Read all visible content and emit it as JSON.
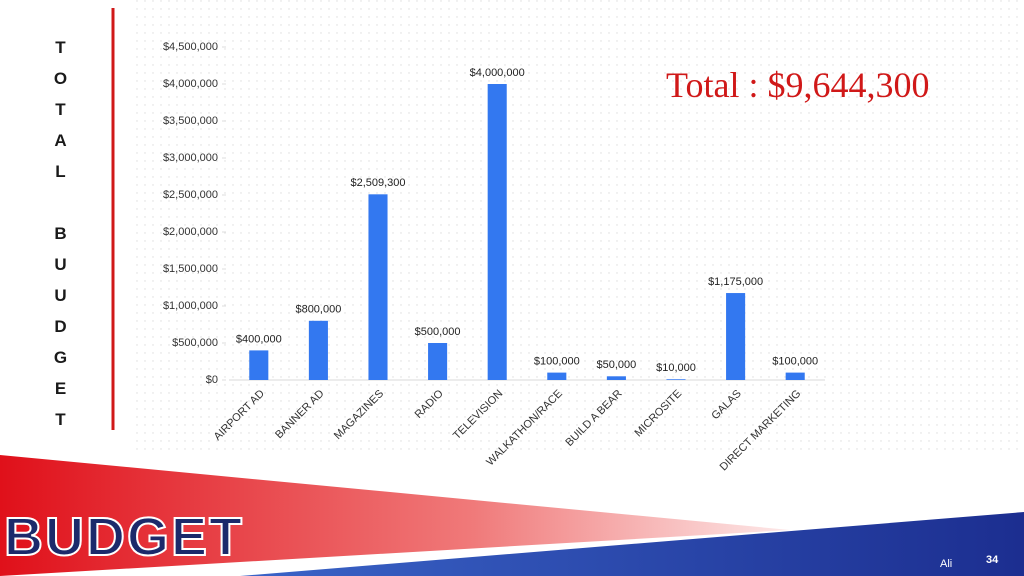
{
  "slide": {
    "side_title": "TOTAL BUUDGET",
    "total": "Total : $9,644,300",
    "heading": "BUDGET",
    "author": "Ali",
    "page": "34"
  },
  "chart_data": {
    "type": "bar",
    "color": "#3378f0",
    "categories": [
      "AIRPORT AD",
      "BANNER AD",
      "MAGAZINES",
      "RADIO",
      "TELEVISION",
      "WALKATHON/RACE",
      "BUILD A BEAR",
      "MICROSITE",
      "GALAS",
      "DIRECT MARKETING"
    ],
    "values": [
      400000,
      800000,
      2509300,
      500000,
      4000000,
      100000,
      50000,
      10000,
      1175000,
      100000
    ],
    "value_labels": [
      "$400,000",
      "$800,000",
      "$2,509,300",
      "$500,000",
      "$4,000,000",
      "$100,000",
      "$50,000",
      "$10,000",
      "$1,175,000",
      "$100,000"
    ],
    "ylim": [
      0,
      4500000
    ],
    "yticks": [
      {
        "value": 0,
        "label": "$0"
      },
      {
        "value": 500000,
        "label": "$500,000"
      },
      {
        "value": 1000000,
        "label": "$1,000,000"
      },
      {
        "value": 1500000,
        "label": "$1,500,000"
      },
      {
        "value": 2000000,
        "label": "$2,000,000"
      },
      {
        "value": 2500000,
        "label": "$2,500,000"
      },
      {
        "value": 3000000,
        "label": "$3,000,000"
      },
      {
        "value": 3500000,
        "label": "$3,500,000"
      },
      {
        "value": 4000000,
        "label": "$4,000,000"
      },
      {
        "value": 4500000,
        "label": "$4,500,000"
      }
    ]
  }
}
